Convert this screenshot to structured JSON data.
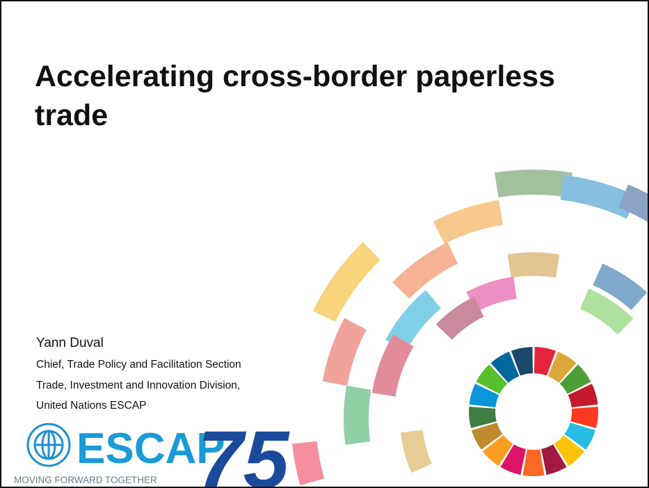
{
  "slide": {
    "title": "Accelerating cross-border paperless trade",
    "presenter": {
      "name": "Yann Duval",
      "lines": [
        "Chief, Trade Policy and Facilitation Section",
        "Trade, Investment and Innovation Division,",
        "United Nations ESCAP"
      ]
    },
    "logo": {
      "name": "ESCAP",
      "anniversary": "75",
      "tagline": "MOVING FORWARD TOGETHER"
    }
  }
}
